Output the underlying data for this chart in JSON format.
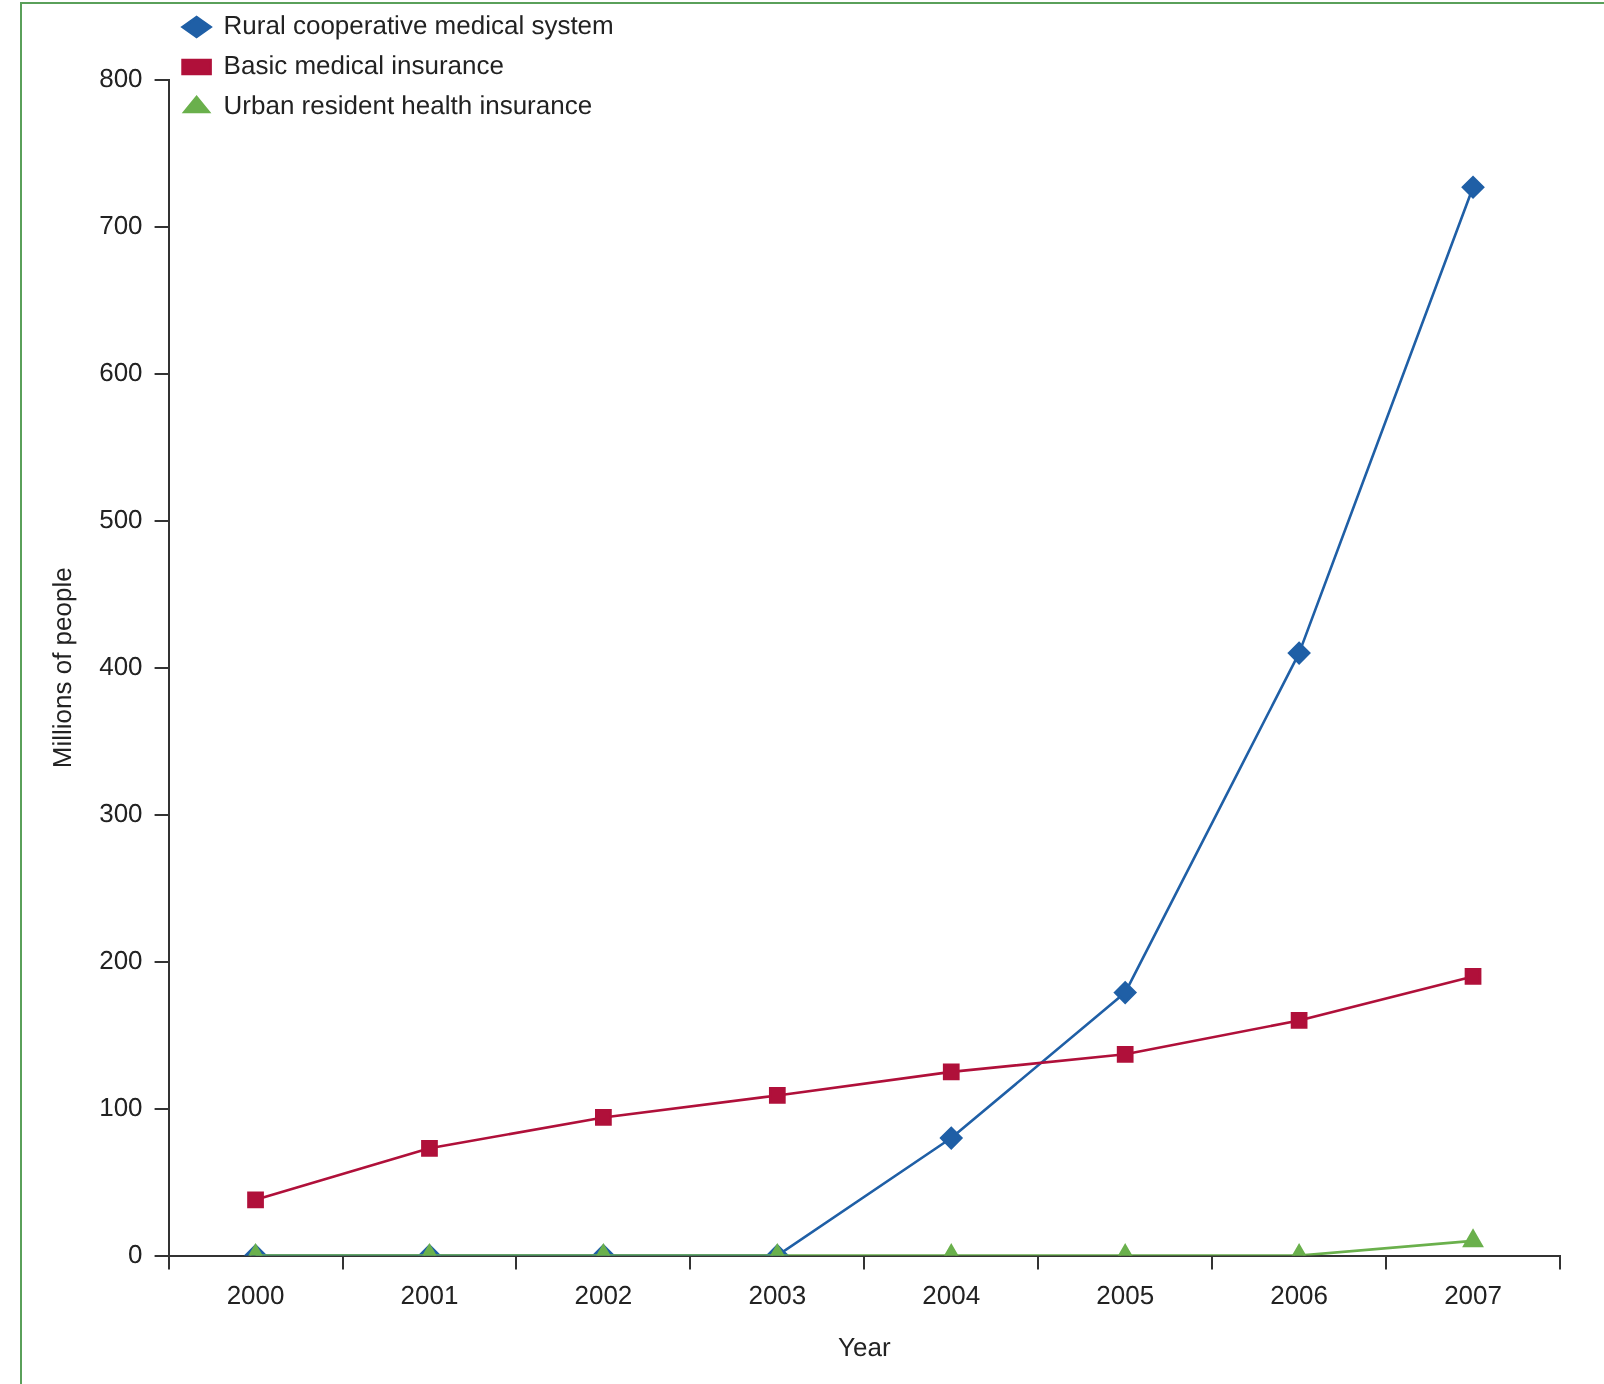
{
  "chart_data": {
    "type": "line",
    "xlabel": "Year",
    "ylabel": "Millions of people",
    "categories": [
      "2000",
      "2001",
      "2002",
      "2003",
      "2004",
      "2005",
      "2006",
      "2007"
    ],
    "series": [
      {
        "name": "Rural cooperative medical system",
        "color": "#1f5fa6",
        "marker": "diamond",
        "values": [
          0,
          0,
          0,
          0,
          80,
          179,
          410,
          727
        ]
      },
      {
        "name": "Basic medical insurance",
        "color": "#b0103a",
        "marker": "square",
        "values": [
          38,
          73,
          94,
          109,
          125,
          137,
          160,
          190
        ]
      },
      {
        "name": "Urban resident health insurance",
        "color": "#6ab04c",
        "marker": "triangle",
        "values": [
          0,
          0,
          0,
          0,
          0,
          0,
          0,
          10
        ]
      }
    ],
    "ylim": [
      0,
      800
    ],
    "yticks": [
      0,
      100,
      200,
      300,
      400,
      500,
      600,
      700,
      800
    ],
    "grid": false,
    "legend": "top left",
    "line_style": "solid"
  }
}
